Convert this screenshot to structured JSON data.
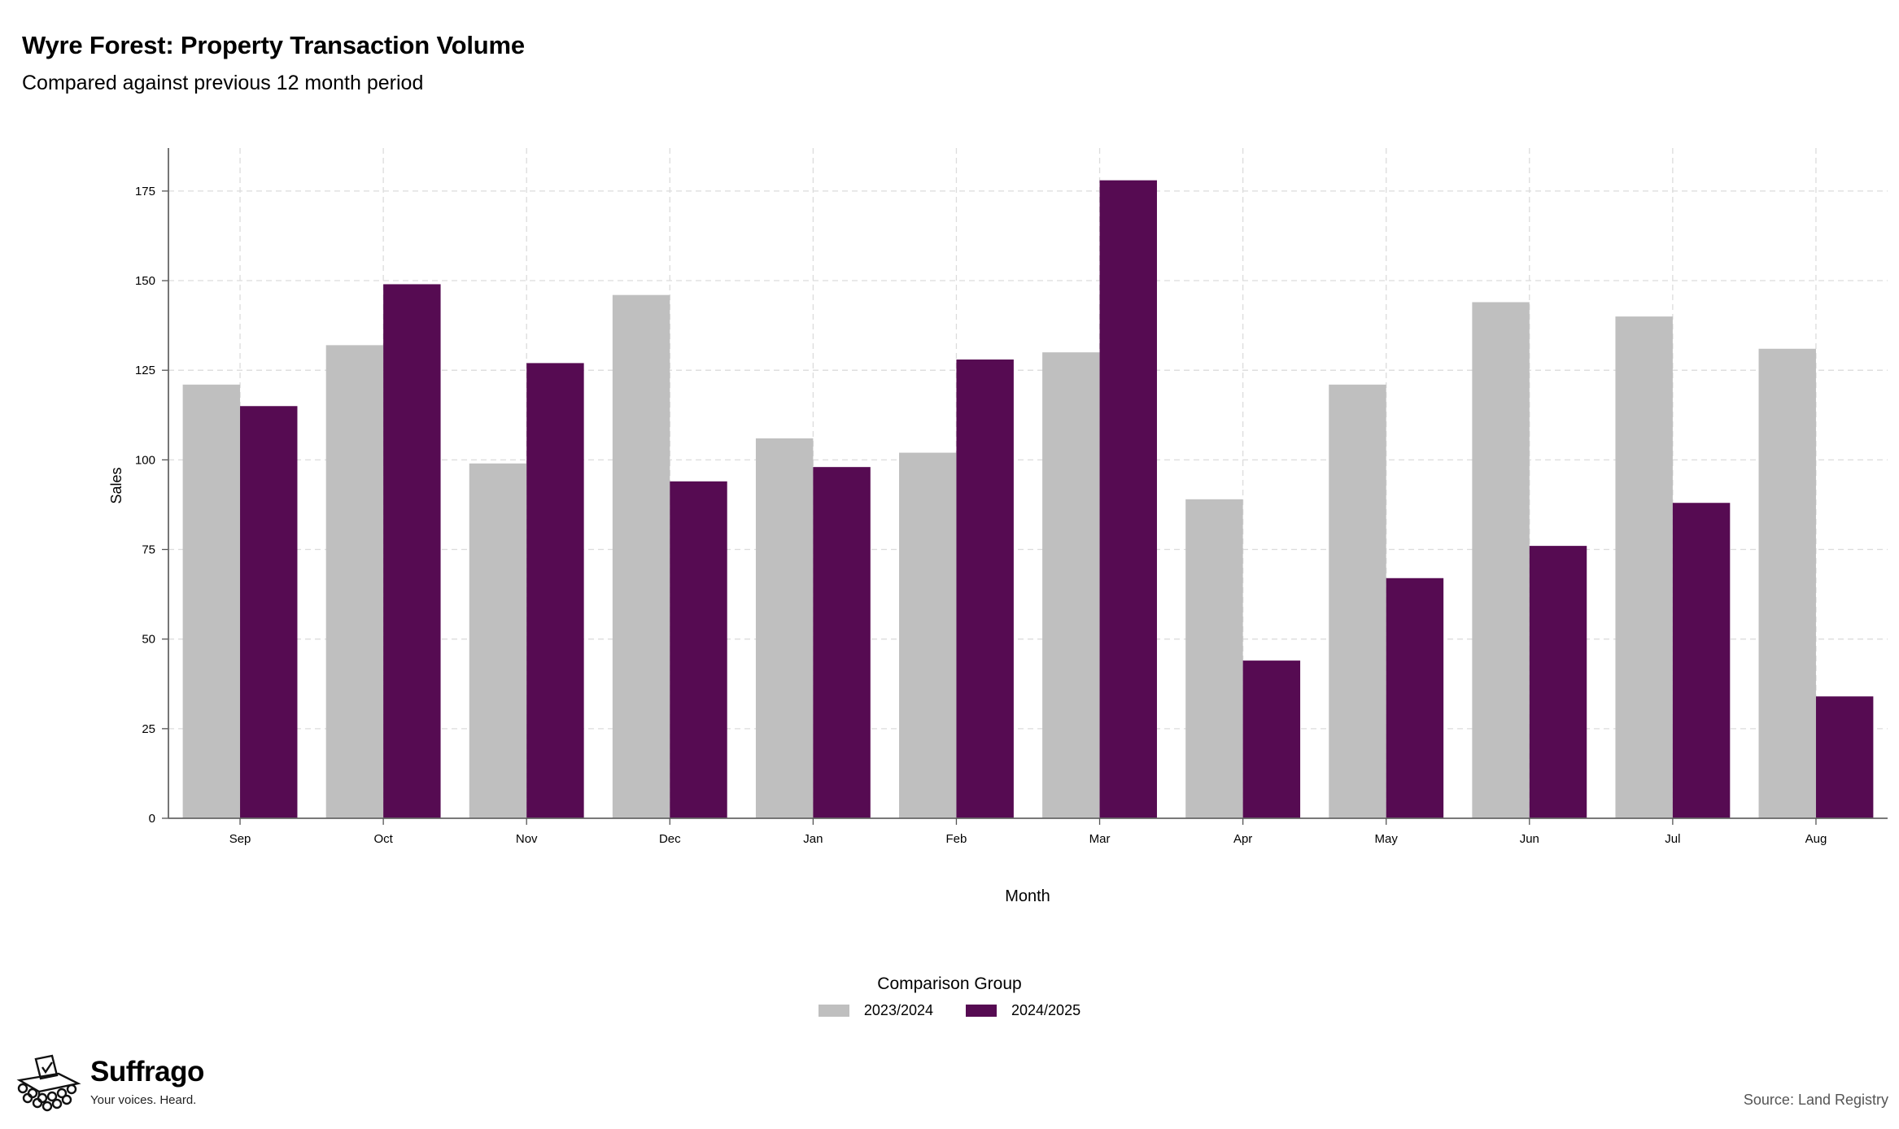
{
  "chart_data": {
    "type": "bar",
    "title": "Wyre Forest: Property Transaction Volume",
    "subtitle": "Compared against previous 12 month period",
    "xlabel": "Month",
    "ylabel": "Sales",
    "categories": [
      "Sep",
      "Oct",
      "Nov",
      "Dec",
      "Jan",
      "Feb",
      "Mar",
      "Apr",
      "May",
      "Jun",
      "Jul",
      "Aug"
    ],
    "series": [
      {
        "name": "2023/2024",
        "color": "#bfbfbf",
        "values": [
          121,
          132,
          99,
          146,
          106,
          102,
          130,
          89,
          121,
          144,
          140,
          131
        ]
      },
      {
        "name": "2024/2025",
        "color": "#560b52",
        "values": [
          115,
          149,
          127,
          94,
          98,
          128,
          178,
          44,
          67,
          76,
          88,
          34
        ]
      }
    ],
    "ylim": [
      0,
      187
    ],
    "yticks": [
      0,
      25,
      50,
      75,
      100,
      125,
      150,
      175
    ],
    "grid": true,
    "legend": {
      "title": "Comparison Group",
      "position": "bottom"
    }
  },
  "branding": {
    "name": "Suffrago",
    "tagline": "Your voices. Heard.",
    "logo_icon": "ballot-box-icon"
  },
  "source_note": "Source: Land Registry"
}
